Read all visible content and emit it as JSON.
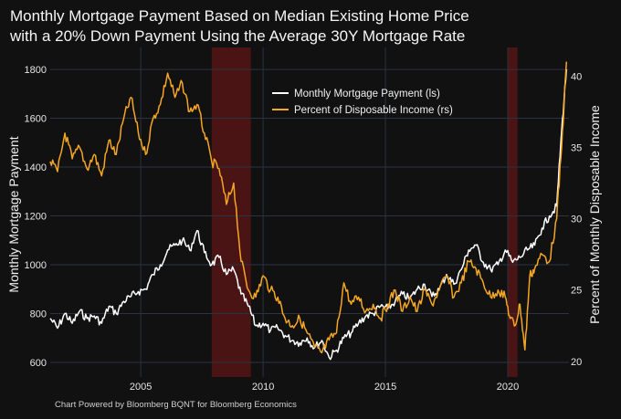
{
  "title": {
    "line1": "Monthly Mortgage Payment Based on Median Existing Home Price",
    "line2": "with a 20% Down Payment Using the Average 30Y Mortgage Rate"
  },
  "footer": "Chart Powered by Bloomberg BQNT for Bloomberg Economics",
  "chart_data": {
    "type": "line",
    "title": "Monthly Mortgage Payment Based on Median Existing Home Price with a 20% Down Payment Using the Average 30Y Mortgage Rate",
    "ylabel": "Monthly Mortgage Payment",
    "y2label": "Percent of Monthly Disposable Income",
    "xlim": [
      2001.3,
      2022.5
    ],
    "ylim": [
      540,
      1890
    ],
    "y2lim": [
      18.9,
      42
    ],
    "x_ticks": [
      2005,
      2010,
      2015,
      2020
    ],
    "x_tick_labels": [
      "2005",
      "2010",
      "2015",
      "2020"
    ],
    "y_ticks": [
      600,
      800,
      1000,
      1200,
      1400,
      1600,
      1800
    ],
    "y_tick_labels": [
      "600",
      "800",
      "1000",
      "1200",
      "1400",
      "1600",
      "1800"
    ],
    "y2_ticks": [
      20,
      25,
      30,
      35,
      40
    ],
    "y2_tick_labels": [
      "20",
      "25",
      "30",
      "35",
      "40"
    ],
    "grid": true,
    "legend_position": "top-right",
    "recession_bands": [
      [
        2007.9,
        2009.5
      ],
      [
        2020.0,
        2020.4
      ]
    ],
    "colors": {
      "background": "#111111",
      "grid": "#2a3342",
      "payment": "#ffffff",
      "percent": "#f5a623",
      "recession": "#4a1414"
    },
    "series": [
      {
        "name": "Monthly Mortgage Payment (ls)",
        "axis": "left",
        "x": [
          2001.3,
          2001.6,
          2001.9,
          2002.2,
          2002.5,
          2002.8,
          2003.1,
          2003.4,
          2003.7,
          2004.0,
          2004.3,
          2004.6,
          2004.9,
          2005.2,
          2005.5,
          2005.8,
          2006.1,
          2006.4,
          2006.7,
          2007.0,
          2007.3,
          2007.6,
          2007.9,
          2008.2,
          2008.5,
          2008.8,
          2009.1,
          2009.4,
          2009.7,
          2010.0,
          2010.3,
          2010.6,
          2010.9,
          2011.2,
          2011.5,
          2011.8,
          2012.1,
          2012.4,
          2012.7,
          2013.0,
          2013.3,
          2013.6,
          2013.9,
          2014.2,
          2014.5,
          2014.8,
          2015.1,
          2015.4,
          2015.7,
          2016.0,
          2016.3,
          2016.6,
          2016.9,
          2017.2,
          2017.5,
          2017.8,
          2018.1,
          2018.4,
          2018.7,
          2019.0,
          2019.3,
          2019.6,
          2019.9,
          2020.2,
          2020.5,
          2020.8,
          2021.1,
          2021.4,
          2021.7,
          2022.0,
          2022.2,
          2022.4
        ],
        "values": [
          780,
          740,
          800,
          760,
          810,
          780,
          790,
          760,
          830,
          800,
          850,
          870,
          890,
          900,
          960,
          1000,
          1060,
          1080,
          1100,
          1060,
          1140,
          1050,
          1000,
          1030,
          960,
          980,
          880,
          830,
          750,
          760,
          730,
          740,
          710,
          690,
          680,
          700,
          660,
          690,
          620,
          650,
          700,
          720,
          760,
          790,
          800,
          830,
          820,
          850,
          880,
          860,
          900,
          920,
          870,
          900,
          960,
          920,
          980,
          1060,
          1080,
          1010,
          980,
          1000,
          1060,
          1010,
          1030,
          1060,
          1080,
          1150,
          1200,
          1240,
          1550,
          1800
        ]
      },
      {
        "name": "Percent of Disposable Income (rs)",
        "axis": "right",
        "x": [
          2001.3,
          2001.6,
          2001.9,
          2002.2,
          2002.5,
          2002.8,
          2003.1,
          2003.4,
          2003.7,
          2004.0,
          2004.3,
          2004.6,
          2004.9,
          2005.2,
          2005.5,
          2005.8,
          2006.1,
          2006.4,
          2006.7,
          2007.0,
          2007.3,
          2007.6,
          2007.9,
          2008.2,
          2008.5,
          2008.8,
          2009.1,
          2009.4,
          2009.7,
          2010.0,
          2010.3,
          2010.6,
          2010.9,
          2011.2,
          2011.5,
          2011.8,
          2012.1,
          2012.4,
          2012.7,
          2013.0,
          2013.3,
          2013.6,
          2013.9,
          2014.2,
          2014.5,
          2014.8,
          2015.1,
          2015.4,
          2015.7,
          2016.0,
          2016.3,
          2016.6,
          2016.9,
          2017.2,
          2017.5,
          2017.8,
          2018.1,
          2018.4,
          2018.7,
          2019.0,
          2019.3,
          2019.6,
          2019.9,
          2020.1,
          2020.3,
          2020.5,
          2020.7,
          2020.9,
          2021.1,
          2021.4,
          2021.7,
          2022.0,
          2022.2,
          2022.4
        ],
        "values": [
          34,
          33.3,
          36,
          34.2,
          35,
          33.5,
          34.5,
          33,
          35.5,
          34.5,
          37,
          38.5,
          36,
          34.5,
          37,
          38,
          40.2,
          38.5,
          39.5,
          37.5,
          38,
          36,
          34,
          33.5,
          31,
          32.5,
          27,
          25,
          24.5,
          26,
          25,
          24.5,
          23,
          22.5,
          23,
          22,
          21,
          20.6,
          21.5,
          22,
          25.5,
          24,
          24.5,
          23.5,
          24,
          23,
          24,
          25,
          23.5,
          24.5,
          23.5,
          25,
          24,
          25,
          26,
          24.5,
          25.5,
          27,
          26.5,
          25.5,
          24.5,
          25,
          24.5,
          23,
          22.5,
          24,
          20.8,
          26,
          26.5,
          27.5,
          27,
          30,
          35,
          41
        ]
      }
    ]
  }
}
